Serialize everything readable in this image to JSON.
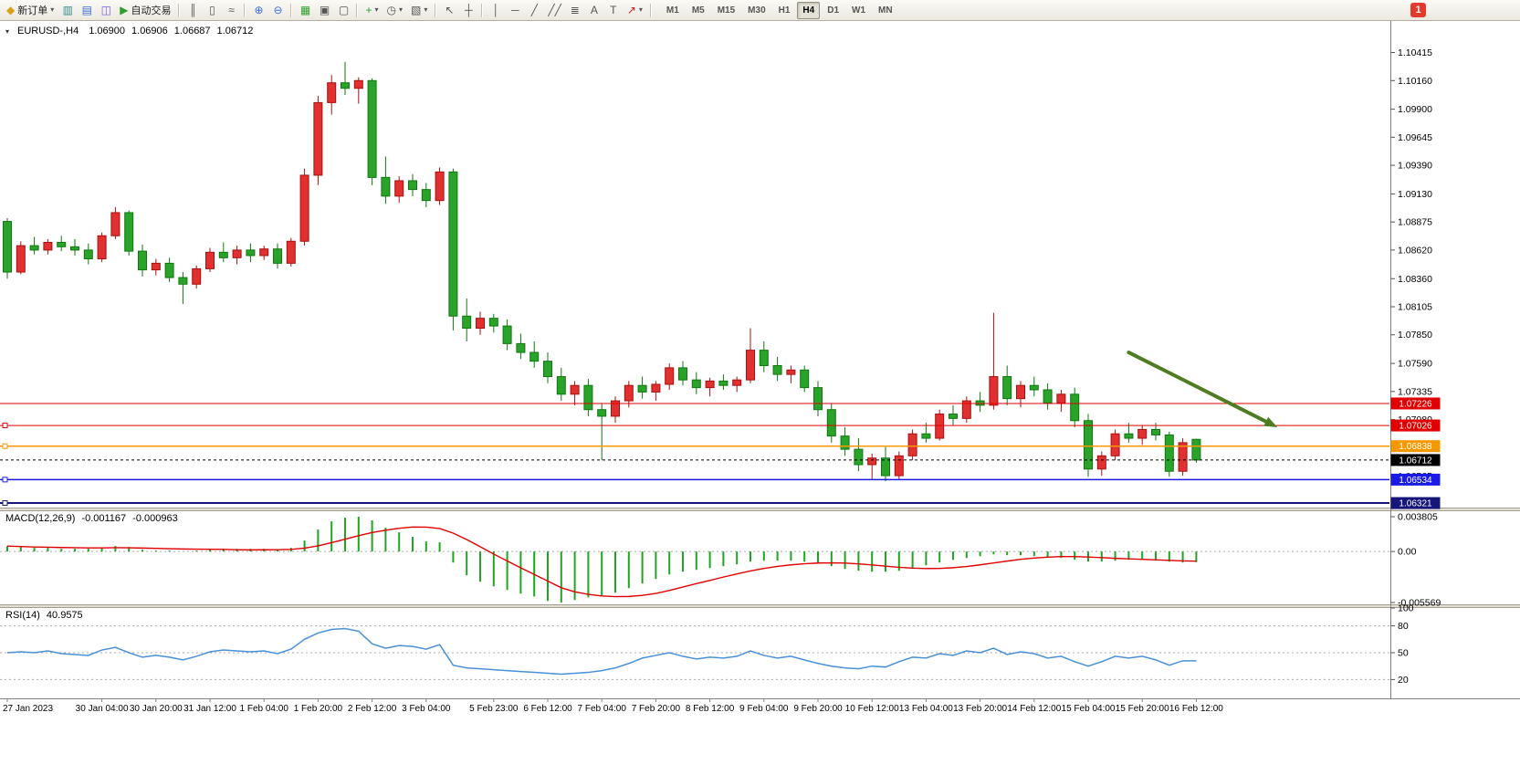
{
  "window": {
    "badge_count": "1"
  },
  "toolbar": {
    "new_order_label": "新订单",
    "auto_trading_label": "自动交易",
    "timeframes": [
      "M1",
      "M5",
      "M15",
      "M30",
      "H1",
      "H4",
      "D1",
      "W1",
      "MN"
    ],
    "active_timeframe": "H4"
  },
  "icons": {
    "dropdown": "▾",
    "new-order": "◆",
    "charts": "▥",
    "profiles": "▤",
    "market-watch": "◫",
    "autotrade-play": "▶",
    "bar-chart": "║",
    "candlestick": "▯",
    "line-chart": "≈",
    "zoom-in": "⊕",
    "zoom-out": "⊖",
    "tile-windows": "▦",
    "cascade": "▣",
    "arrange": "▢",
    "indicators": "+",
    "periods": "◷",
    "templates": "▧",
    "cursor": "↖",
    "crosshair": "┼",
    "vertical-line": "│",
    "horizontal-line": "─",
    "trendline": "╱",
    "channel": "╱╱",
    "fibonacci": "≣",
    "text": "A",
    "label": "T",
    "arrows": "↗"
  },
  "chart_header": {
    "symbol_period": "EURUSD-,H4",
    "open": "1.06900",
    "high": "1.06906",
    "low": "1.06687",
    "close": "1.06712"
  },
  "colors": {
    "bull_fill": "#e03030",
    "bull_stroke": "#a81010",
    "bear_fill": "#29a329",
    "bear_stroke": "#117711",
    "macd_histogram": "#1fa51f",
    "macd_signal": "#e00000",
    "rsi_line": "#4a90d9",
    "trend_arrow": "#4f7b22",
    "level_red": "#e00000",
    "level_orange": "#f59800",
    "level_blue": "#1a1ae6",
    "level_navy": "#16167a",
    "current_price": "#000000"
  },
  "chart_data": {
    "type": "candlestick",
    "symbol": "EURUSD-",
    "period": "H4",
    "price_range": {
      "min": 1.0628,
      "max": 1.1066
    },
    "price_axis_labels": [
      "1.10415",
      "1.10160",
      "1.09900",
      "1.09645",
      "1.09390",
      "1.09130",
      "1.08875",
      "1.08620",
      "1.08360",
      "1.08105",
      "1.07850",
      "1.07590",
      "1.07335",
      "1.07080",
      "1.06820",
      "1.06565"
    ],
    "candles": [
      [
        1.0888,
        1.0891,
        1.0836,
        1.0842
      ],
      [
        1.0842,
        1.087,
        1.084,
        1.0866
      ],
      [
        1.0866,
        1.0874,
        1.0858,
        1.0862
      ],
      [
        1.0862,
        1.0872,
        1.0858,
        1.0869
      ],
      [
        1.0869,
        1.0875,
        1.0861,
        1.0865
      ],
      [
        1.0865,
        1.0872,
        1.0857,
        1.0862
      ],
      [
        1.0862,
        1.0868,
        1.0849,
        1.0854
      ],
      [
        1.0854,
        1.0878,
        1.0851,
        1.0875
      ],
      [
        1.0875,
        1.0901,
        1.0872,
        1.0896
      ],
      [
        1.0896,
        1.0898,
        1.0857,
        1.0861
      ],
      [
        1.0861,
        1.0867,
        1.0838,
        1.0844
      ],
      [
        1.0844,
        1.0854,
        1.0839,
        1.085
      ],
      [
        1.085,
        1.0855,
        1.0833,
        1.0837
      ],
      [
        1.0837,
        1.0842,
        1.0813,
        1.0831
      ],
      [
        1.0831,
        1.0848,
        1.0827,
        1.0845
      ],
      [
        1.0845,
        1.0864,
        1.0842,
        1.086
      ],
      [
        1.086,
        1.0869,
        1.0851,
        1.0855
      ],
      [
        1.0855,
        1.0866,
        1.0849,
        1.0862
      ],
      [
        1.0862,
        1.0868,
        1.0851,
        1.0857
      ],
      [
        1.0857,
        1.0866,
        1.0853,
        1.0863
      ],
      [
        1.0863,
        1.0868,
        1.0845,
        1.085
      ],
      [
        1.085,
        1.0873,
        1.0847,
        1.087
      ],
      [
        1.087,
        1.0936,
        1.0866,
        1.093
      ],
      [
        1.093,
        1.1002,
        1.0921,
        1.0996
      ],
      [
        1.0996,
        1.1021,
        1.0985,
        1.1014
      ],
      [
        1.1014,
        1.1033,
        1.1003,
        1.1009
      ],
      [
        1.1009,
        1.1019,
        1.0995,
        1.1016
      ],
      [
        1.1016,
        1.1018,
        1.0921,
        1.0928
      ],
      [
        1.0928,
        1.0947,
        1.0904,
        1.0911
      ],
      [
        1.0911,
        1.0929,
        1.0905,
        1.0925
      ],
      [
        1.0925,
        1.0931,
        1.0911,
        1.0917
      ],
      [
        1.0917,
        1.0923,
        1.0901,
        1.0907
      ],
      [
        1.0907,
        1.0937,
        1.0903,
        1.0933
      ],
      [
        1.0933,
        1.0936,
        1.0789,
        1.0802
      ],
      [
        1.0802,
        1.0818,
        1.0779,
        1.0791
      ],
      [
        1.0791,
        1.0806,
        1.0785,
        1.08
      ],
      [
        1.08,
        1.0804,
        1.0787,
        1.0793
      ],
      [
        1.0793,
        1.0799,
        1.0771,
        1.0777
      ],
      [
        1.0777,
        1.0786,
        1.0763,
        1.0769
      ],
      [
        1.0769,
        1.0779,
        1.0755,
        1.0761
      ],
      [
        1.0761,
        1.0769,
        1.0741,
        1.0747
      ],
      [
        1.0747,
        1.0755,
        1.0725,
        1.0731
      ],
      [
        1.0731,
        1.0743,
        1.0721,
        1.0739
      ],
      [
        1.0739,
        1.0745,
        1.0711,
        1.0717
      ],
      [
        1.0717,
        1.0723,
        1.0671,
        1.0711
      ],
      [
        1.0711,
        1.0729,
        1.0705,
        1.0725
      ],
      [
        1.0725,
        1.0743,
        1.0719,
        1.0739
      ],
      [
        1.0739,
        1.0747,
        1.0727,
        1.0733
      ],
      [
        1.0733,
        1.0743,
        1.0725,
        1.074
      ],
      [
        1.074,
        1.0759,
        1.0735,
        1.0755
      ],
      [
        1.0755,
        1.0761,
        1.0739,
        1.0744
      ],
      [
        1.0744,
        1.0751,
        1.0731,
        1.0737
      ],
      [
        1.0737,
        1.0746,
        1.0729,
        1.0743
      ],
      [
        1.0743,
        1.0749,
        1.0735,
        1.0739
      ],
      [
        1.0739,
        1.0747,
        1.0733,
        1.0744
      ],
      [
        1.0744,
        1.0791,
        1.0741,
        1.0771
      ],
      [
        1.0771,
        1.0779,
        1.0751,
        1.0757
      ],
      [
        1.0757,
        1.0765,
        1.0743,
        1.0749
      ],
      [
        1.0749,
        1.0757,
        1.0741,
        1.0753
      ],
      [
        1.0753,
        1.0757,
        1.0733,
        1.0737
      ],
      [
        1.0737,
        1.0743,
        1.0711,
        1.0717
      ],
      [
        1.0717,
        1.0723,
        1.0687,
        1.0693
      ],
      [
        1.0693,
        1.0701,
        1.0675,
        1.0681
      ],
      [
        1.0681,
        1.0691,
        1.0661,
        1.0667
      ],
      [
        1.0667,
        1.0677,
        1.0654,
        1.0673
      ],
      [
        1.0673,
        1.0683,
        1.0652,
        1.0657
      ],
      [
        1.0657,
        1.0679,
        1.0653,
        1.0675
      ],
      [
        1.0675,
        1.0699,
        1.0671,
        1.0695
      ],
      [
        1.0695,
        1.0705,
        1.0687,
        1.0691
      ],
      [
        1.0691,
        1.0717,
        1.0689,
        1.0713
      ],
      [
        1.0713,
        1.0721,
        1.0703,
        1.0709
      ],
      [
        1.0709,
        1.0729,
        1.0705,
        1.0725
      ],
      [
        1.0725,
        1.0733,
        1.0715,
        1.0721
      ],
      [
        1.0721,
        1.0805,
        1.0717,
        1.0747
      ],
      [
        1.0747,
        1.0757,
        1.0721,
        1.0727
      ],
      [
        1.0727,
        1.0743,
        1.0719,
        1.0739
      ],
      [
        1.0739,
        1.0747,
        1.0729,
        1.0735
      ],
      [
        1.0735,
        1.0741,
        1.0717,
        1.0723
      ],
      [
        1.0723,
        1.0735,
        1.0715,
        1.0731
      ],
      [
        1.0731,
        1.0737,
        1.0701,
        1.0707
      ],
      [
        1.0707,
        1.0713,
        1.0656,
        1.0663
      ],
      [
        1.0663,
        1.0679,
        1.0657,
        1.0675
      ],
      [
        1.0675,
        1.0699,
        1.0671,
        1.0695
      ],
      [
        1.0695,
        1.0705,
        1.0687,
        1.0691
      ],
      [
        1.0691,
        1.0703,
        1.0685,
        1.0699
      ],
      [
        1.0699,
        1.0705,
        1.0689,
        1.0694
      ],
      [
        1.0694,
        1.0697,
        1.0656,
        1.0661
      ],
      [
        1.0661,
        1.0691,
        1.0657,
        1.0687
      ],
      [
        1.069,
        1.06906,
        1.06687,
        1.06712
      ]
    ],
    "time_labels": [
      {
        "i": 0,
        "t": "27 Jan 2023"
      },
      {
        "i": 7,
        "t": "30 Jan 04:00"
      },
      {
        "i": 11,
        "t": "30 Jan 20:00"
      },
      {
        "i": 15,
        "t": "31 Jan 12:00"
      },
      {
        "i": 19,
        "t": "1 Feb 04:00"
      },
      {
        "i": 23,
        "t": "1 Feb 20:00"
      },
      {
        "i": 27,
        "t": "2 Feb 12:00"
      },
      {
        "i": 31,
        "t": "3 Feb 04:00"
      },
      {
        "i": 36,
        "t": "5 Feb 23:00"
      },
      {
        "i": 40,
        "t": "6 Feb 12:00"
      },
      {
        "i": 44,
        "t": "7 Feb 04:00"
      },
      {
        "i": 48,
        "t": "7 Feb 20:00"
      },
      {
        "i": 52,
        "t": "8 Feb 12:00"
      },
      {
        "i": 56,
        "t": "9 Feb 04:00"
      },
      {
        "i": 60,
        "t": "9 Feb 20:00"
      },
      {
        "i": 64,
        "t": "10 Feb 12:00"
      },
      {
        "i": 68,
        "t": "13 Feb 04:00"
      },
      {
        "i": 72,
        "t": "13 Feb 20:00"
      },
      {
        "i": 76,
        "t": "14 Feb 12:00"
      },
      {
        "i": 80,
        "t": "15 Feb 04:00"
      },
      {
        "i": 84,
        "t": "15 Feb 20:00"
      },
      {
        "i": 88,
        "t": "16 Feb 12:00"
      }
    ],
    "hlines": [
      {
        "price": 1.07226,
        "label": "1.07226",
        "color": "#e00000",
        "width": 1,
        "handle": false
      },
      {
        "price": 1.07026,
        "label": "1.07026",
        "color": "#e00000",
        "width": 1,
        "handle": true
      },
      {
        "price": 1.06838,
        "label": "1.06838",
        "color": "#f59800",
        "width": 1.5,
        "handle": true
      },
      {
        "price": 1.06534,
        "label": "1.06534",
        "color": "#1a1ae6",
        "width": 1.5,
        "handle": true
      },
      {
        "price": 1.06321,
        "label": "1.06321",
        "color": "#16167a",
        "width": 2,
        "handle": true
      }
    ],
    "current_price_line": {
      "price": 1.06712,
      "label": "1.06712",
      "color": "#000000"
    },
    "trend_arrow": {
      "i1": 83,
      "p1": 1.0769,
      "i2": 94,
      "p2": 1.0701
    },
    "macd": {
      "name": "MACD(12,26,9)",
      "main_value": "-0.001167",
      "signal_value": "-0.000963",
      "axis_max": "0.003805",
      "axis_mid": "0.00",
      "axis_min": "-0.005569",
      "signal_period": 9,
      "histogram": [
        0.0006,
        0.0005,
        0.0004,
        0.0004,
        0.0003,
        0.0003,
        0.0003,
        0.0004,
        0.0006,
        0.0005,
        0.0002,
        0.0001,
        0.0001,
        0.0,
        0.0001,
        0.0002,
        0.0003,
        0.0003,
        0.0003,
        0.0003,
        0.0002,
        0.0004,
        0.0012,
        0.0024,
        0.0033,
        0.0037,
        0.0038,
        0.0034,
        0.0026,
        0.0021,
        0.0016,
        0.0011,
        0.001,
        -0.0012,
        -0.0026,
        -0.0033,
        -0.0038,
        -0.0042,
        -0.0046,
        -0.0049,
        -0.0054,
        -0.005569,
        -0.0053,
        -0.005,
        -0.0049,
        -0.0045,
        -0.004,
        -0.0035,
        -0.003,
        -0.0025,
        -0.0022,
        -0.002,
        -0.0018,
        -0.0016,
        -0.0014,
        -0.0011,
        -0.001,
        -0.001,
        -0.001,
        -0.0011,
        -0.0013,
        -0.0016,
        -0.0019,
        -0.0021,
        -0.0022,
        -0.0022,
        -0.0021,
        -0.0018,
        -0.0015,
        -0.0012,
        -0.0009,
        -0.0007,
        -0.0005,
        -0.0003,
        -0.0004,
        -0.0004,
        -0.0005,
        -0.0006,
        -0.0007,
        -0.0009,
        -0.0011,
        -0.0011,
        -0.001,
        -0.0009,
        -0.0009,
        -0.001,
        -0.0011,
        -0.0012,
        -0.001167
      ]
    },
    "rsi": {
      "name": "RSI(14)",
      "value": "40.9575",
      "levels": [
        100,
        80,
        50,
        20
      ],
      "series": [
        50,
        51,
        50,
        52,
        49,
        48,
        47,
        53,
        56,
        50,
        45,
        47,
        45,
        42,
        46,
        51,
        53,
        52,
        51,
        52,
        49,
        54,
        65,
        72,
        76,
        77,
        74,
        60,
        55,
        58,
        57,
        54,
        59,
        36,
        33,
        32,
        31,
        30,
        29,
        28,
        27,
        26,
        27,
        28,
        30,
        33,
        38,
        44,
        47,
        50,
        46,
        43,
        45,
        44,
        46,
        52,
        47,
        44,
        46,
        42,
        38,
        35,
        33,
        32,
        35,
        34,
        40,
        45,
        44,
        49,
        47,
        52,
        50,
        55,
        48,
        51,
        49,
        44,
        46,
        40,
        35,
        40,
        46,
        44,
        46,
        42,
        36,
        41,
        40.96
      ]
    }
  }
}
